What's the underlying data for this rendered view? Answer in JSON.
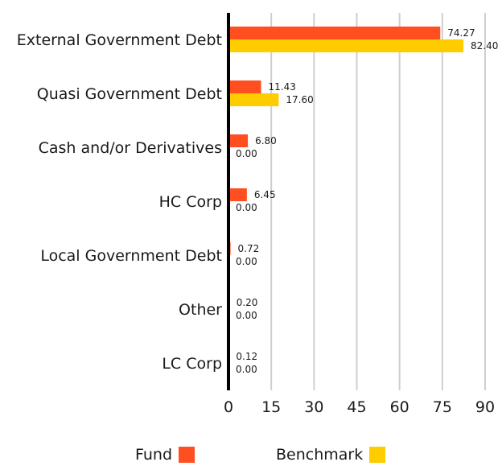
{
  "chart_data": {
    "type": "bar",
    "orientation": "horizontal",
    "categories": [
      "External Government Debt",
      "Quasi Government Debt",
      "Cash and/or Derivatives",
      "HC Corp",
      "Local  Government Debt",
      "Other",
      "LC Corp"
    ],
    "series": [
      {
        "name": "Fund",
        "values": [
          74.27,
          11.43,
          6.8,
          6.45,
          0.72,
          0.2,
          0.12
        ],
        "color": "#ff4e1f"
      },
      {
        "name": "Benchmark",
        "values": [
          82.4,
          17.6,
          0.0,
          0.0,
          0.0,
          0.0,
          0.0
        ],
        "color": "#ffcc00"
      }
    ],
    "value_labels": [
      [
        "74.27",
        "82.40"
      ],
      [
        "11.43",
        "17.60"
      ],
      [
        "6.80",
        "0.00"
      ],
      [
        "6.45",
        "0.00"
      ],
      [
        "0.72",
        "0.00"
      ],
      [
        "0.20",
        "0.00"
      ],
      [
        "0.12",
        "0.00"
      ]
    ],
    "xticks": [
      "0",
      "15",
      "30",
      "45",
      "60",
      "75",
      "90"
    ],
    "xlim": [
      0,
      90
    ],
    "grid": "vertical",
    "legend": "bottom"
  }
}
